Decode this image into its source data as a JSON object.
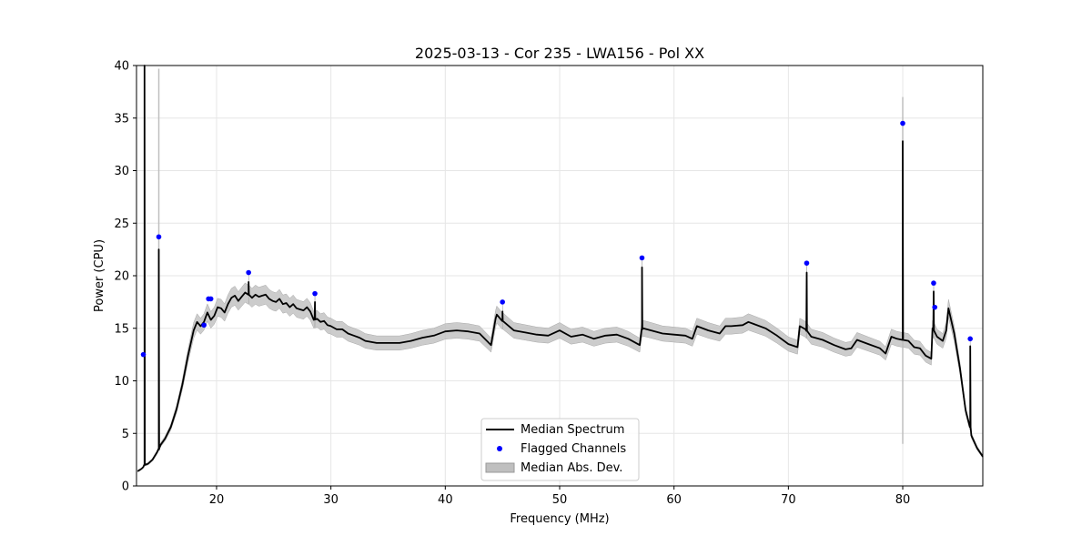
{
  "chart_data": {
    "type": "line",
    "title": "2025-03-13 - Cor 235 - LWA156 - Pol XX",
    "xlabel": "Frequency (MHz)",
    "ylabel": "Power (CPU)",
    "xlim": [
      13.0,
      87.0
    ],
    "ylim": [
      0,
      40
    ],
    "xticks": [
      20,
      30,
      40,
      50,
      60,
      70,
      80
    ],
    "yticks": [
      0,
      5,
      10,
      15,
      20,
      25,
      30,
      35,
      40
    ],
    "grid": true,
    "legend_position": "lower-center",
    "legend": [
      "Median Spectrum",
      "Flagged Channels",
      "Median Abs. Dev."
    ],
    "colors": {
      "median": "#000000",
      "flagged": "#0000ff",
      "mad": "#bfbfbf"
    },
    "median_spectrum": {
      "x": [
        13.1,
        13.4,
        13.5,
        13.6,
        13.7,
        14.0,
        14.4,
        14.8,
        14.95,
        15.0,
        15.1,
        15.5,
        16.0,
        16.5,
        17.0,
        17.5,
        18.0,
        18.3,
        18.6,
        18.9,
        19.2,
        19.5,
        19.8,
        20.1,
        20.4,
        20.7,
        21.0,
        21.3,
        21.6,
        21.9,
        22.2,
        22.5,
        22.8,
        23.1,
        23.4,
        23.7,
        24.0,
        24.3,
        24.6,
        24.9,
        25.2,
        25.5,
        25.8,
        26.1,
        26.4,
        26.7,
        27.0,
        27.3,
        27.6,
        27.9,
        28.2,
        28.5,
        28.8,
        29.1,
        29.4,
        29.7,
        30.0,
        30.5,
        31.0,
        31.5,
        32.0,
        32.5,
        33.0,
        34.0,
        35.0,
        36.0,
        37.0,
        38.0,
        39.0,
        40.0,
        41.0,
        42.0,
        43.0,
        44.0,
        44.4,
        44.5,
        45.0,
        46.0,
        47.0,
        48.0,
        49.0,
        50.0,
        51.0,
        52.0,
        53.0,
        54.0,
        55.0,
        56.0,
        57.0,
        57.2,
        57.3,
        58.0,
        59.0,
        60.0,
        61.0,
        61.6,
        62.0,
        63.0,
        64.0,
        64.5,
        65.0,
        66.0,
        66.5,
        67.0,
        68.0,
        69.0,
        70.0,
        70.8,
        71.0,
        71.5,
        72.0,
        73.0,
        74.0,
        75.0,
        75.5,
        76.0,
        77.0,
        78.0,
        78.5,
        79.0,
        79.5,
        80.0,
        80.5,
        81.0,
        81.5,
        82.0,
        82.5,
        82.6,
        83.0,
        83.5,
        83.8,
        84.0,
        84.5,
        85.0,
        85.5,
        85.9,
        86.0,
        86.5,
        87.0
      ],
      "y": [
        1.4,
        1.6,
        1.7,
        1.8,
        2.0,
        2.1,
        2.5,
        3.2,
        3.5,
        3.6,
        3.9,
        4.5,
        5.6,
        7.3,
        9.6,
        12.4,
        14.8,
        15.6,
        15.2,
        15.6,
        16.5,
        15.8,
        16.2,
        17.0,
        16.9,
        16.5,
        17.3,
        17.9,
        18.1,
        17.6,
        18.0,
        18.4,
        18.2,
        17.9,
        18.2,
        18.0,
        18.1,
        18.2,
        17.8,
        17.6,
        17.5,
        17.8,
        17.3,
        17.4,
        17.0,
        17.3,
        16.9,
        16.8,
        16.7,
        17.0,
        16.6,
        15.8,
        15.9,
        15.6,
        15.7,
        15.3,
        15.2,
        14.9,
        14.9,
        14.5,
        14.3,
        14.1,
        13.8,
        13.6,
        13.6,
        13.6,
        13.8,
        14.1,
        14.3,
        14.7,
        14.8,
        14.7,
        14.5,
        13.4,
        15.9,
        16.3,
        15.7,
        14.8,
        14.6,
        14.4,
        14.3,
        14.8,
        14.2,
        14.4,
        14.0,
        14.3,
        14.4,
        14.0,
        13.4,
        14.9,
        15.0,
        14.8,
        14.5,
        14.4,
        14.3,
        14.0,
        15.2,
        14.8,
        14.5,
        15.2,
        15.2,
        15.3,
        15.6,
        15.4,
        15.0,
        14.3,
        13.5,
        13.2,
        15.2,
        14.9,
        14.2,
        13.9,
        13.4,
        13.0,
        13.1,
        13.9,
        13.5,
        13.1,
        12.6,
        14.2,
        14.0,
        13.9,
        13.8,
        13.2,
        13.1,
        12.4,
        12.1,
        15.0,
        14.2,
        13.8,
        14.8,
        16.9,
        14.5,
        11.2,
        7.2,
        5.6,
        4.8,
        3.6,
        2.8
      ],
      "spikes": [
        {
          "x": 13.7,
          "y": 40.0
        },
        {
          "x": 14.95,
          "y": 22.5
        },
        {
          "x": 22.8,
          "y": 19.4
        },
        {
          "x": 28.6,
          "y": 17.5
        },
        {
          "x": 45.0,
          "y": 16.6
        },
        {
          "x": 57.2,
          "y": 20.8
        },
        {
          "x": 71.6,
          "y": 20.3
        },
        {
          "x": 80.0,
          "y": 32.8
        },
        {
          "x": 82.7,
          "y": 18.5
        },
        {
          "x": 85.9,
          "y": 13.3
        }
      ]
    },
    "flagged_channels": {
      "x": [
        13.6,
        14.95,
        18.9,
        19.3,
        19.5,
        22.8,
        28.6,
        45.0,
        57.2,
        71.6,
        80.0,
        82.7,
        82.8,
        85.9
      ],
      "y": [
        12.5,
        23.7,
        15.3,
        17.8,
        17.8,
        20.3,
        18.3,
        17.5,
        21.7,
        21.2,
        34.5,
        19.3,
        17.0,
        14.0
      ]
    },
    "mad_band_halfwidth": 0.75,
    "mad_spikes": [
      {
        "x": 14.95,
        "y": 39.7
      },
      {
        "x": 80.0,
        "y": 37.0
      }
    ]
  }
}
